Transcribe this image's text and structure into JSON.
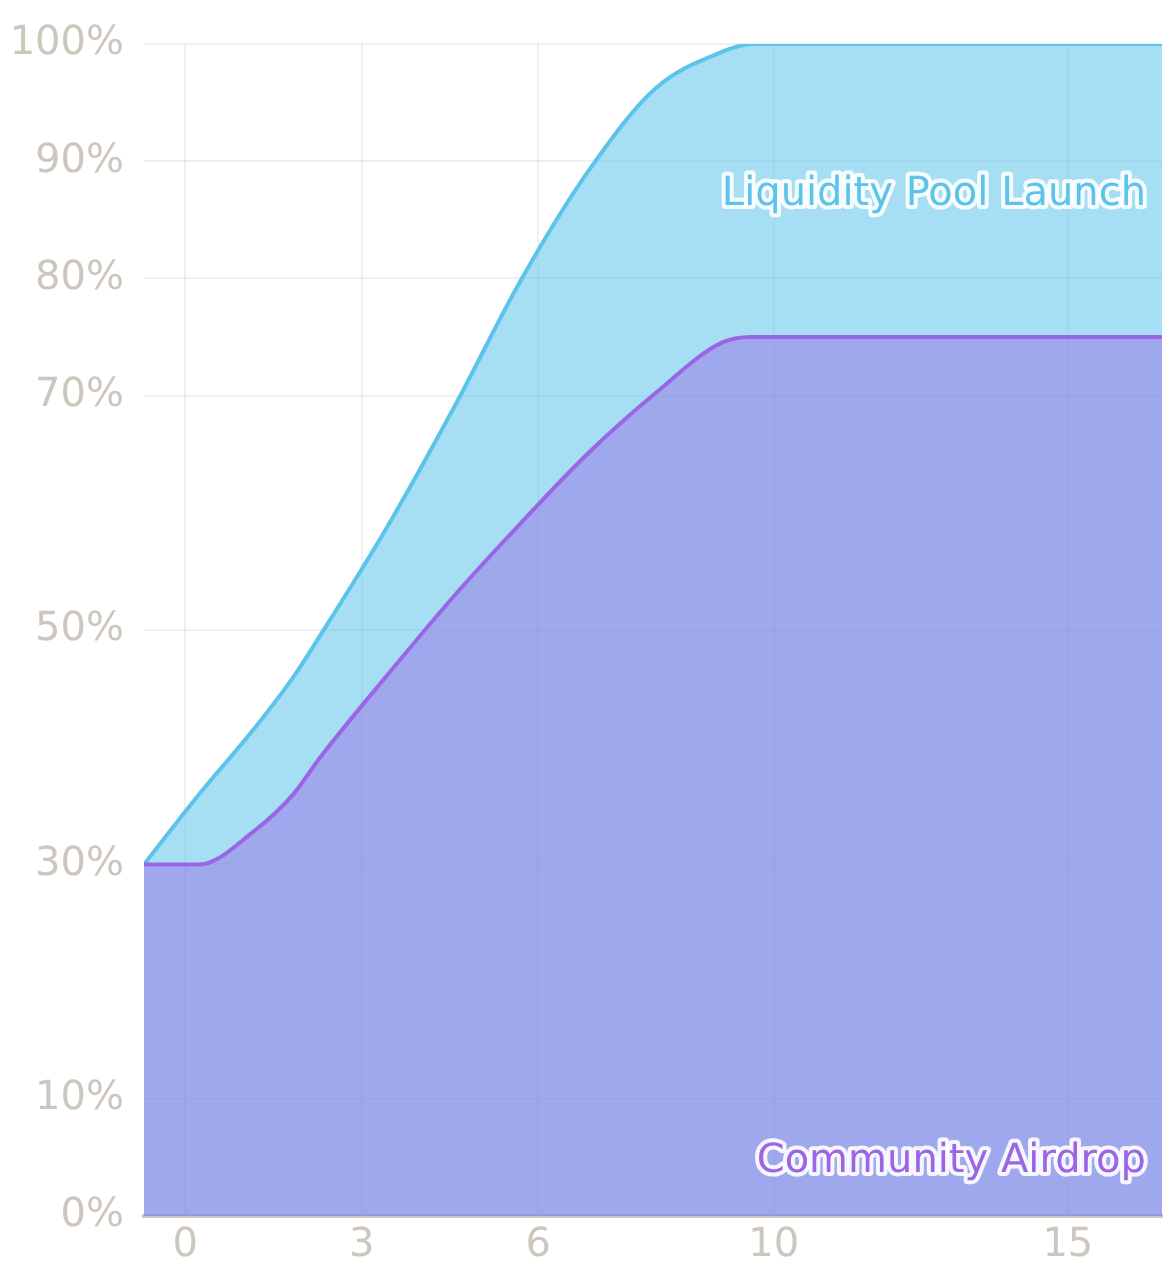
{
  "chart_data": {
    "type": "area",
    "x": [
      -0.7,
      0.24,
      1.16,
      1.84,
      2.29,
      3.41,
      4.57,
      5.7,
      6.83,
      7.99,
      9.11,
      9.62,
      16.6
    ],
    "series": [
      {
        "name": "Liquidity Pool Launch",
        "color": "#5cc3ea",
        "values": [
          30,
          36,
          41.5,
          46,
          49.5,
          58.6,
          69,
          79.8,
          89,
          96.2,
          99.3,
          100,
          100
        ]
      },
      {
        "name": "Community Airdrop",
        "color": "#9a66e6",
        "values": [
          30,
          30,
          32.8,
          36,
          39.1,
          46,
          52.9,
          59.1,
          65,
          70.2,
          74.5,
          75,
          75
        ]
      }
    ],
    "xlim": [
      -0.7,
      16.6
    ],
    "xticks": [
      0,
      3,
      6,
      10,
      15
    ],
    "ylim": [
      0,
      100
    ],
    "yticks": [
      {
        "value": 0,
        "label": "0%"
      },
      {
        "value": 10,
        "label": "10%"
      },
      {
        "value": 30,
        "label": "30%"
      },
      {
        "value": 50,
        "label": "50%"
      },
      {
        "value": 70,
        "label": "70%"
      },
      {
        "value": 80,
        "label": "80%"
      },
      {
        "value": 90,
        "label": "90%"
      },
      {
        "value": 100,
        "label": "100%"
      }
    ],
    "grid": true,
    "legend": false
  }
}
